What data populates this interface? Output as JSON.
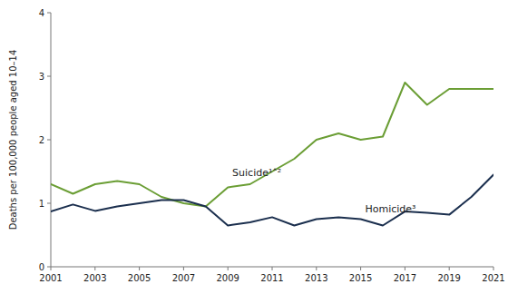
{
  "chart_data": {
    "type": "line",
    "y_label": "Deaths per 100,000 people aged 10–14",
    "x": [
      2001,
      2002,
      2003,
      2004,
      2005,
      2006,
      2007,
      2008,
      2009,
      2010,
      2011,
      2012,
      2013,
      2014,
      2015,
      2016,
      2017,
      2018,
      2019,
      2020,
      2021
    ],
    "series": [
      {
        "color": "#6b9e35",
        "values": [
          1.3,
          1.15,
          1.3,
          1.35,
          1.3,
          1.1,
          1.0,
          0.95,
          1.25,
          1.3,
          1.5,
          1.7,
          2.0,
          2.1,
          2.0,
          2.05,
          2.9,
          2.55,
          2.8,
          2.8,
          2.8
        ]
      },
      {
        "color": "#1b2f4e",
        "values": [
          0.87,
          0.98,
          0.88,
          0.95,
          1.0,
          1.05,
          1.05,
          0.95,
          0.65,
          0.7,
          0.78,
          0.65,
          0.75,
          0.78,
          0.75,
          0.65,
          0.87,
          0.85,
          0.82,
          1.1,
          1.45
        ]
      }
    ],
    "annotations": [
      {
        "text": "Suicide¹˄²",
        "x": 2009.2,
        "y": 1.38
      },
      {
        "text": "Homicide³",
        "x": 2015.2,
        "y": 0.82
      }
    ],
    "xlim": [
      2001,
      2021
    ],
    "xticks": [
      2001,
      2003,
      2005,
      2007,
      2009,
      2011,
      2013,
      2015,
      2017,
      2019,
      2021
    ],
    "ylim": [
      0,
      4
    ],
    "yticks": [
      0,
      1,
      2,
      3,
      4
    ],
    "grid": false
  }
}
